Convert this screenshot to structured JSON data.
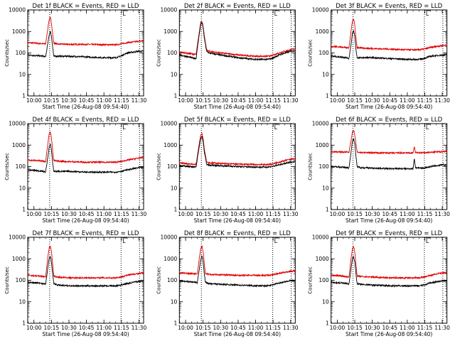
{
  "figure": {
    "x_ticks": [
      "10:00",
      "10:15",
      "10:30",
      "10:45",
      "11:00",
      "11:15",
      "11:30"
    ],
    "y_ticks": [
      "1",
      "10",
      "100",
      "1000",
      "10000"
    ],
    "ylabel": "Counts/sec",
    "xlabel": "Start Time (26-Aug-08 09:54:40)",
    "marker_label": "L",
    "colors": {
      "events": "#000000",
      "lld": "#e00000"
    }
  },
  "chart_data": [
    {
      "type": "line",
      "title": "Det 1f BLACK = Events, RED = LLD",
      "yscale": "log",
      "ylim": [
        1,
        10000
      ],
      "xlim": [
        "09:54:40",
        "11:34:00"
      ],
      "vlines": [
        "10:13:30",
        "11:14:40",
        "11:30:30"
      ],
      "series": [
        {
          "color": "#000000",
          "x": [
            "09:54:40",
            "10:03",
            "10:08",
            "10:10",
            "10:12",
            "10:13",
            "10:14",
            "10:15",
            "10:16",
            "10:17",
            "10:20",
            "10:30",
            "10:45",
            "11:00",
            "11:10",
            "11:14",
            "11:20",
            "11:30",
            "11:34"
          ],
          "y": [
            80,
            75,
            70,
            65,
            300,
            700,
            1000,
            600,
            200,
            70,
            70,
            70,
            65,
            60,
            60,
            70,
            100,
            120,
            120
          ]
        },
        {
          "color": "#e00000",
          "x": [
            "09:54:40",
            "10:03",
            "10:08",
            "10:10",
            "10:12",
            "10:13",
            "10:14",
            "10:15",
            "10:16",
            "10:17",
            "10:20",
            "10:30",
            "10:45",
            "11:00",
            "11:10",
            "11:14",
            "11:20",
            "11:30",
            "11:34"
          ],
          "y": [
            300,
            280,
            270,
            260,
            1500,
            3500,
            4500,
            2500,
            800,
            280,
            260,
            250,
            250,
            240,
            240,
            260,
            300,
            350,
            360
          ]
        }
      ]
    },
    {
      "type": "line",
      "title": "Det 2f BLACK = Events, RED = LLD",
      "yscale": "log",
      "ylim": [
        1,
        10000
      ],
      "xlim": [
        "09:54:40",
        "11:34:00"
      ],
      "vlines": [
        "10:13:30",
        "11:14:40",
        "11:30:30"
      ],
      "series": [
        {
          "color": "#000000",
          "x": [
            "09:54:40",
            "10:00",
            "10:05",
            "10:09",
            "10:11",
            "10:13",
            "10:14",
            "10:15",
            "10:16",
            "10:18",
            "10:20",
            "10:30",
            "10:45",
            "11:00",
            "11:10",
            "11:14",
            "11:20",
            "11:30",
            "11:34"
          ],
          "y": [
            80,
            70,
            60,
            55,
            400,
            2200,
            2500,
            1500,
            500,
            120,
            100,
            80,
            60,
            50,
            50,
            55,
            80,
            120,
            130
          ]
        },
        {
          "color": "#e00000",
          "x": [
            "09:54:40",
            "10:00",
            "10:05",
            "10:09",
            "10:11",
            "10:13",
            "10:14",
            "10:15",
            "10:16",
            "10:18",
            "10:20",
            "10:30",
            "10:45",
            "11:00",
            "11:10",
            "11:14",
            "11:20",
            "11:30",
            "11:34"
          ],
          "y": [
            110,
            100,
            90,
            85,
            500,
            2800,
            3000,
            1800,
            600,
            140,
            120,
            100,
            80,
            70,
            70,
            75,
            100,
            140,
            160
          ]
        }
      ]
    },
    {
      "type": "line",
      "title": "Det 3f BLACK = Events, RED = LLD",
      "yscale": "log",
      "ylim": [
        1,
        10000
      ],
      "xlim": [
        "09:54:40",
        "11:34:00"
      ],
      "vlines": [
        "10:13:30",
        "11:14:40",
        "11:30:30"
      ],
      "series": [
        {
          "color": "#000000",
          "x": [
            "09:54:40",
            "10:03",
            "10:08",
            "10:10",
            "10:12",
            "10:13",
            "10:14",
            "10:15",
            "10:16",
            "10:17",
            "10:20",
            "10:30",
            "10:45",
            "11:00",
            "11:10",
            "11:14",
            "11:20",
            "11:30",
            "11:34"
          ],
          "y": [
            70,
            65,
            60,
            55,
            300,
            800,
            1100,
            600,
            150,
            60,
            60,
            60,
            55,
            50,
            50,
            55,
            70,
            80,
            80
          ]
        },
        {
          "color": "#e00000",
          "x": [
            "09:54:40",
            "10:03",
            "10:08",
            "10:10",
            "10:12",
            "10:13",
            "10:14",
            "10:15",
            "10:16",
            "10:17",
            "10:20",
            "10:30",
            "10:45",
            "11:00",
            "11:10",
            "11:14",
            "11:20",
            "11:30",
            "11:34"
          ],
          "y": [
            200,
            190,
            180,
            170,
            1200,
            3000,
            3800,
            2000,
            500,
            180,
            170,
            160,
            150,
            140,
            140,
            150,
            180,
            220,
            230
          ]
        }
      ]
    },
    {
      "type": "line",
      "title": "Det 4f BLACK = Events, RED = LLD",
      "yscale": "log",
      "ylim": [
        1,
        10000
      ],
      "xlim": [
        "09:54:40",
        "11:34:00"
      ],
      "vlines": [
        "10:13:30",
        "11:14:40",
        "11:30:30"
      ],
      "series": [
        {
          "color": "#000000",
          "x": [
            "09:54:40",
            "10:03",
            "10:08",
            "10:10",
            "10:12",
            "10:13",
            "10:14",
            "10:15",
            "10:16",
            "10:17",
            "10:20",
            "10:30",
            "10:45",
            "11:00",
            "11:10",
            "11:14",
            "11:20",
            "11:30",
            "11:34"
          ],
          "y": [
            70,
            65,
            60,
            55,
            300,
            800,
            1100,
            600,
            150,
            60,
            60,
            60,
            55,
            55,
            55,
            60,
            70,
            90,
            90
          ]
        },
        {
          "color": "#e00000",
          "x": [
            "09:54:40",
            "10:03",
            "10:08",
            "10:10",
            "10:12",
            "10:13",
            "10:14",
            "10:15",
            "10:16",
            "10:17",
            "10:20",
            "10:30",
            "10:45",
            "11:00",
            "11:10",
            "11:14",
            "11:20",
            "11:30",
            "11:34"
          ],
          "y": [
            200,
            190,
            180,
            170,
            1300,
            3200,
            4200,
            2200,
            600,
            190,
            180,
            170,
            160,
            160,
            160,
            170,
            200,
            250,
            260
          ]
        }
      ]
    },
    {
      "type": "line",
      "title": "Det 5f BLACK = Events, RED = LLD",
      "yscale": "log",
      "ylim": [
        1,
        10000
      ],
      "xlim": [
        "09:54:40",
        "11:34:00"
      ],
      "vlines": [
        "10:13:30",
        "11:14:40",
        "11:30:30"
      ],
      "series": [
        {
          "color": "#000000",
          "x": [
            "09:54:40",
            "10:00",
            "10:05",
            "10:09",
            "10:11",
            "10:13",
            "10:14",
            "10:15",
            "10:16",
            "10:18",
            "10:20",
            "10:30",
            "10:45",
            "11:00",
            "11:10",
            "11:14",
            "11:20",
            "11:30",
            "11:34"
          ],
          "y": [
            110,
            105,
            100,
            95,
            500,
            2200,
            2600,
            1500,
            500,
            130,
            115,
            110,
            100,
            95,
            95,
            100,
            120,
            160,
            170
          ]
        },
        {
          "color": "#e00000",
          "x": [
            "09:54:40",
            "10:00",
            "10:05",
            "10:09",
            "10:11",
            "10:13",
            "10:14",
            "10:15",
            "10:16",
            "10:18",
            "10:20",
            "10:30",
            "10:45",
            "11:00",
            "11:10",
            "11:14",
            "11:20",
            "11:30",
            "11:34"
          ],
          "y": [
            150,
            140,
            130,
            125,
            700,
            3000,
            3500,
            2000,
            700,
            170,
            150,
            140,
            130,
            125,
            125,
            130,
            160,
            220,
            230
          ]
        }
      ]
    },
    {
      "type": "line",
      "title": "Det 6f BLACK = Events, RED = LLD",
      "yscale": "log",
      "ylim": [
        1,
        10000
      ],
      "xlim": [
        "09:54:40",
        "11:34:00"
      ],
      "vlines": [
        "10:13:30",
        "11:14:40",
        "11:30:30"
      ],
      "series": [
        {
          "color": "#000000",
          "x": [
            "09:54:40",
            "10:03",
            "10:08",
            "10:10",
            "10:12",
            "10:13",
            "10:14",
            "10:15",
            "10:16",
            "10:17",
            "10:20",
            "10:30",
            "10:45",
            "11:00",
            "11:05",
            "11:06",
            "11:07",
            "11:10",
            "11:14",
            "11:20",
            "11:30",
            "11:34"
          ],
          "y": [
            100,
            95,
            90,
            85,
            600,
            1500,
            2000,
            1200,
            300,
            100,
            90,
            85,
            80,
            80,
            80,
            250,
            90,
            85,
            85,
            100,
            120,
            120
          ]
        },
        {
          "color": "#e00000",
          "x": [
            "09:54:40",
            "10:03",
            "10:08",
            "10:10",
            "10:12",
            "10:13",
            "10:14",
            "10:15",
            "10:16",
            "10:17",
            "10:20",
            "10:30",
            "10:45",
            "11:00",
            "11:05",
            "11:06",
            "11:07",
            "11:10",
            "11:14",
            "11:20",
            "11:30",
            "11:34"
          ],
          "y": [
            500,
            480,
            470,
            460,
            2000,
            4000,
            5000,
            3000,
            1200,
            480,
            450,
            440,
            430,
            430,
            430,
            900,
            450,
            440,
            440,
            460,
            500,
            520
          ]
        }
      ]
    },
    {
      "type": "line",
      "title": "Det 7f BLACK = Events, RED = LLD",
      "yscale": "log",
      "ylim": [
        1,
        10000
      ],
      "xlim": [
        "09:54:40",
        "11:34:00"
      ],
      "vlines": [
        "10:13:30",
        "11:14:40",
        "11:30:30"
      ],
      "series": [
        {
          "color": "#000000",
          "x": [
            "09:54:40",
            "10:03",
            "10:08",
            "10:10",
            "10:12",
            "10:13",
            "10:14",
            "10:15",
            "10:16",
            "10:17",
            "10:20",
            "10:30",
            "10:45",
            "11:00",
            "11:10",
            "11:14",
            "11:20",
            "11:30",
            "11:34"
          ],
          "y": [
            80,
            75,
            70,
            65,
            400,
            1000,
            1400,
            700,
            200,
            70,
            60,
            55,
            55,
            55,
            55,
            60,
            70,
            90,
            90
          ]
        },
        {
          "color": "#e00000",
          "x": [
            "09:54:40",
            "10:03",
            "10:08",
            "10:10",
            "10:12",
            "10:13",
            "10:14",
            "10:15",
            "10:16",
            "10:17",
            "10:20",
            "10:30",
            "10:45",
            "11:00",
            "11:10",
            "11:14",
            "11:20",
            "11:30",
            "11:34"
          ],
          "y": [
            170,
            160,
            150,
            145,
            1300,
            3200,
            4000,
            2200,
            600,
            160,
            140,
            130,
            130,
            130,
            130,
            140,
            170,
            210,
            220
          ]
        }
      ]
    },
    {
      "type": "line",
      "title": "Det 8f BLACK = Events, RED = LLD",
      "yscale": "log",
      "ylim": [
        1,
        10000
      ],
      "xlim": [
        "09:54:40",
        "11:34:00"
      ],
      "vlines": [
        "10:13:30",
        "11:14:40",
        "11:30:30"
      ],
      "series": [
        {
          "color": "#000000",
          "x": [
            "09:54:40",
            "10:03",
            "10:08",
            "10:10",
            "10:12",
            "10:13",
            "10:14",
            "10:15",
            "10:16",
            "10:17",
            "10:20",
            "10:30",
            "10:45",
            "11:00",
            "11:10",
            "11:14",
            "11:20",
            "11:30",
            "11:34"
          ],
          "y": [
            90,
            85,
            80,
            75,
            400,
            1000,
            1400,
            700,
            200,
            80,
            70,
            65,
            60,
            55,
            55,
            60,
            75,
            95,
            95
          ]
        },
        {
          "color": "#e00000",
          "x": [
            "09:54:40",
            "10:03",
            "10:08",
            "10:10",
            "10:12",
            "10:13",
            "10:14",
            "10:15",
            "10:16",
            "10:17",
            "10:20",
            "10:30",
            "10:45",
            "11:00",
            "11:10",
            "11:14",
            "11:20",
            "11:30",
            "11:34"
          ],
          "y": [
            220,
            210,
            200,
            195,
            1300,
            3000,
            4000,
            2200,
            600,
            200,
            190,
            180,
            170,
            170,
            170,
            180,
            210,
            260,
            270
          ]
        }
      ]
    },
    {
      "type": "line",
      "title": "Det 9f BLACK = Events, RED = LLD",
      "yscale": "log",
      "ylim": [
        1,
        10000
      ],
      "xlim": [
        "09:54:40",
        "11:34:00"
      ],
      "vlines": [
        "10:13:30",
        "11:14:40",
        "11:30:30"
      ],
      "series": [
        {
          "color": "#000000",
          "x": [
            "09:54:40",
            "10:03",
            "10:08",
            "10:10",
            "10:12",
            "10:13",
            "10:14",
            "10:15",
            "10:16",
            "10:17",
            "10:20",
            "10:30",
            "10:45",
            "11:00",
            "11:10",
            "11:14",
            "11:20",
            "11:30",
            "11:34"
          ],
          "y": [
            80,
            75,
            70,
            65,
            400,
            1000,
            1300,
            700,
            200,
            70,
            65,
            60,
            55,
            55,
            55,
            60,
            75,
            95,
            95
          ]
        },
        {
          "color": "#e00000",
          "x": [
            "09:54:40",
            "10:03",
            "10:08",
            "10:10",
            "10:12",
            "10:13",
            "10:14",
            "10:15",
            "10:16",
            "10:17",
            "10:20",
            "10:30",
            "10:45",
            "11:00",
            "11:10",
            "11:14",
            "11:20",
            "11:30",
            "11:34"
          ],
          "y": [
            170,
            160,
            150,
            145,
            1200,
            3000,
            3800,
            2000,
            600,
            160,
            150,
            140,
            130,
            130,
            130,
            140,
            170,
            220,
            230
          ]
        }
      ]
    }
  ]
}
